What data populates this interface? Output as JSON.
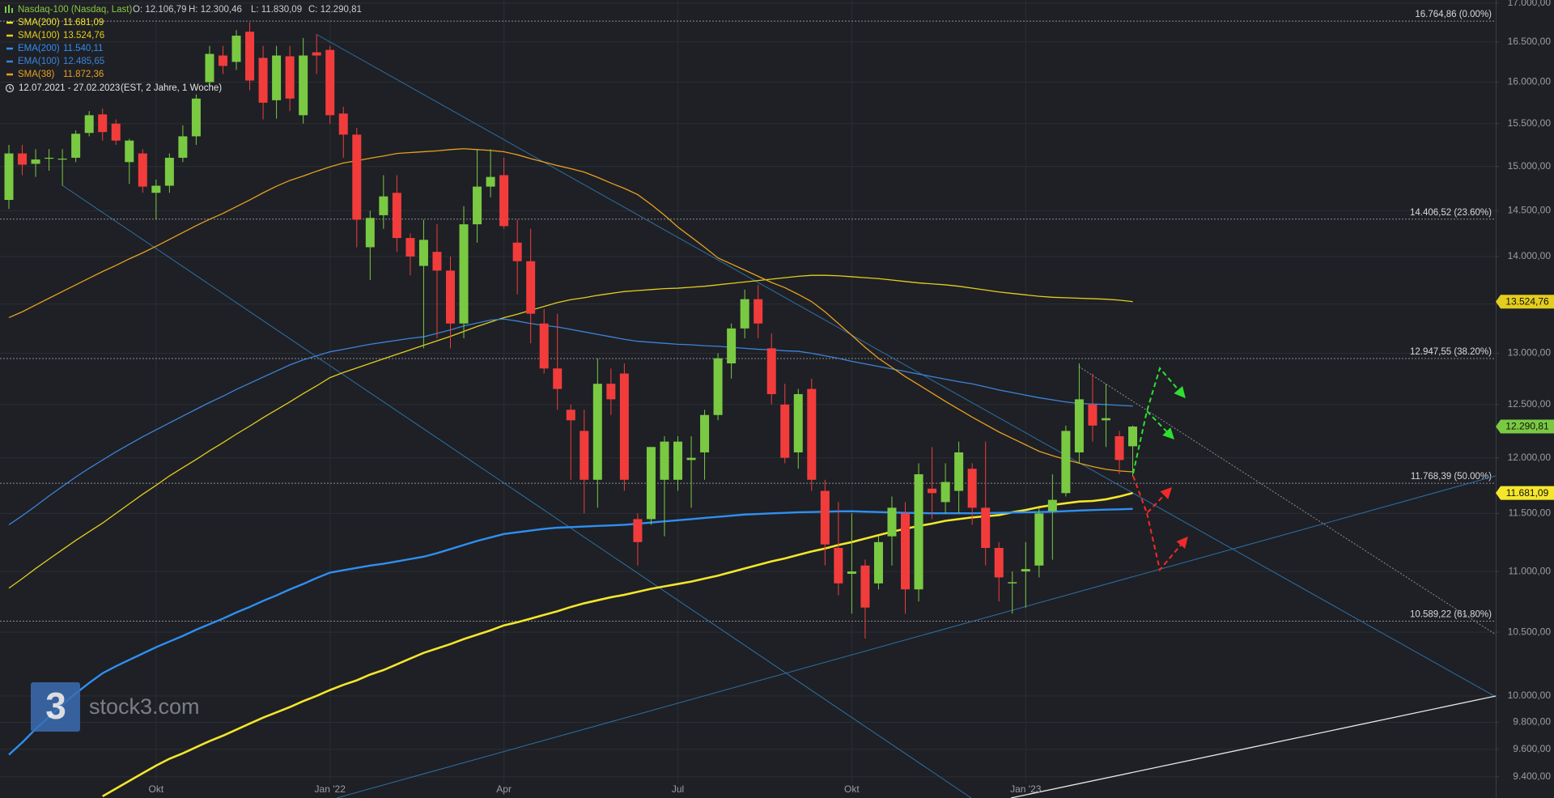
{
  "chart_data": {
    "type": "candlestick",
    "title": "Nasdaq-100 (Nasdaq, Last)",
    "ohlc_labels": [
      "O: 12.106,79",
      "H: 12.300,46",
      "L: 11.830,09",
      "C: 12.290,81"
    ],
    "date_range": "12.07.2021 - 27.02.2023",
    "date_note": "(EST, 2 Jahre, 1 Woche)",
    "brand": "stock3.com",
    "logo_mark": "3",
    "last_close_label": "12.290,81",
    "up_color": "#7ac943",
    "down_color": "#f23c3c",
    "log": true,
    "grid": true,
    "ylim": [
      9248,
      17039
    ],
    "yticks": [
      {
        "value": 9400,
        "label": "9.400,00"
      },
      {
        "value": 9600,
        "label": "9.600,00"
      },
      {
        "value": 9800,
        "label": "9.800,00"
      },
      {
        "value": 10000,
        "label": "10.000,00"
      },
      {
        "value": 10500,
        "label": "10.500,00"
      },
      {
        "value": 11000,
        "label": "11.000,00"
      },
      {
        "value": 11500,
        "label": "11.500,00"
      },
      {
        "value": 12000,
        "label": "12.000,00"
      },
      {
        "value": 12500,
        "label": "12.500,00"
      },
      {
        "value": 13000,
        "label": "13.000,00"
      },
      {
        "value": 13500,
        "label": "13.500,00"
      },
      {
        "value": 14000,
        "label": "14.000,00"
      },
      {
        "value": 14500,
        "label": "14.500,00"
      },
      {
        "value": 15000,
        "label": "15.000,00"
      },
      {
        "value": 15500,
        "label": "15.500,00"
      },
      {
        "value": 16000,
        "label": "16.000,00"
      },
      {
        "value": 16500,
        "label": "16.500,00"
      },
      {
        "value": 17000,
        "label": "17.000,00"
      }
    ],
    "levels": [
      {
        "value": 16764.86,
        "label": "16.764,86 (0.00%)"
      },
      {
        "value": 14406.52,
        "label": "14.406,52 (23.60%)"
      },
      {
        "value": 12947.55,
        "label": "12.947,55 (38.20%)"
      },
      {
        "value": 11768.39,
        "label": "11.768,39 (50.00%)"
      },
      {
        "value": 10589.22,
        "label": "10.589,22 (61.80%)"
      }
    ],
    "categories": [
      null,
      null,
      null,
      null,
      null,
      null,
      null,
      null,
      null,
      null,
      null,
      "Okt",
      null,
      null,
      null,
      null,
      null,
      null,
      null,
      null,
      null,
      null,
      null,
      null,
      "Jan '22",
      null,
      null,
      null,
      null,
      null,
      null,
      null,
      null,
      null,
      null,
      null,
      null,
      "Apr",
      null,
      null,
      null,
      null,
      null,
      null,
      null,
      null,
      null,
      null,
      null,
      null,
      "Jul",
      null,
      null,
      null,
      null,
      null,
      null,
      null,
      null,
      null,
      null,
      null,
      null,
      "Okt",
      null,
      null,
      null,
      null,
      null,
      null,
      null,
      null,
      null,
      null,
      null,
      null,
      "Jan '23",
      null,
      null,
      null,
      null,
      null,
      null,
      null,
      null
    ],
    "open": [
      14620,
      15150,
      15030,
      15090,
      15080,
      15100,
      15390,
      15610,
      15500,
      15050,
      15150,
      14700,
      14780,
      15100,
      15350,
      16000,
      16330,
      16250,
      16630,
      16300,
      15780,
      16320,
      15600,
      16370,
      16400,
      15620,
      15370,
      14100,
      14450,
      14700,
      14200,
      13900,
      14050,
      13850,
      13300,
      14350,
      14770,
      14900,
      14150,
      13950,
      13300,
      12850,
      12450,
      12250,
      11800,
      12700,
      12800,
      11450,
      11450,
      11800,
      11800,
      11980,
      12050,
      12400,
      12900,
      13250,
      13550,
      13050,
      12500,
      12050,
      12650,
      11700,
      11200,
      10980,
      11050,
      10900,
      11300,
      11500,
      10850,
      11720,
      11600,
      11700,
      11900,
      11550,
      11200,
      10900,
      11000,
      11050,
      11520,
      11680,
      12050,
      12500,
      12350,
      12200,
      12106.79
    ],
    "high": [
      15250,
      15250,
      15200,
      15200,
      15200,
      15420,
      15650,
      15680,
      15550,
      15320,
      15200,
      14850,
      15150,
      15480,
      15850,
      16450,
      16450,
      16650,
      16750,
      16450,
      16450,
      16450,
      16550,
      16600,
      16450,
      15700,
      15450,
      14500,
      14900,
      14900,
      14250,
      14400,
      14350,
      14000,
      14550,
      15200,
      15200,
      15100,
      14400,
      14300,
      13450,
      13400,
      12500,
      12450,
      12950,
      12850,
      12900,
      11500,
      12100,
      12200,
      12200,
      12200,
      12450,
      13000,
      13300,
      13650,
      13700,
      13200,
      12700,
      12650,
      12750,
      11800,
      11600,
      11500,
      11100,
      11300,
      11650,
      11600,
      11950,
      12100,
      11950,
      12150,
      11950,
      12150,
      11250,
      11000,
      11250,
      11550,
      11850,
      12300,
      12900,
      12800,
      12700,
      12250,
      12300.46
    ],
    "low": [
      14520,
      14900,
      14880,
      14950,
      14780,
      15050,
      15350,
      15300,
      15250,
      14800,
      14700,
      14400,
      14700,
      15050,
      15250,
      15950,
      16100,
      16150,
      15900,
      15550,
      15560,
      15650,
      15500,
      16100,
      15500,
      15100,
      14100,
      13750,
      14300,
      14050,
      13800,
      13050,
      13150,
      13050,
      13150,
      14150,
      14650,
      14300,
      13600,
      13100,
      12800,
      12450,
      11800,
      11500,
      11550,
      12400,
      11700,
      11050,
      11400,
      11300,
      11700,
      11550,
      11800,
      12350,
      12750,
      13150,
      13150,
      12500,
      11950,
      11900,
      11700,
      11050,
      10800,
      10650,
      10450,
      10850,
      11050,
      10650,
      10750,
      11450,
      11500,
      11500,
      11400,
      11050,
      10750,
      10650,
      10700,
      10950,
      11100,
      11650,
      11950,
      12150,
      12100,
      11850,
      11830.09
    ],
    "close": [
      15150,
      15020,
      15080,
      15100,
      15090,
      15380,
      15600,
      15400,
      15300,
      15300,
      14770,
      14780,
      15100,
      15350,
      15800,
      16350,
      16200,
      16580,
      16020,
      15750,
      16330,
      15800,
      16330,
      16330,
      15600,
      15370,
      14400,
      14420,
      14660,
      14200,
      14000,
      14180,
      13850,
      13300,
      14350,
      14770,
      14880,
      14330,
      13950,
      13400,
      12850,
      12650,
      12350,
      11800,
      12700,
      12550,
      11800,
      11250,
      12100,
      12150,
      12150,
      12000,
      12400,
      12950,
      13250,
      13550,
      13300,
      12600,
      12000,
      12600,
      11800,
      11230,
      10900,
      11000,
      10700,
      11250,
      11550,
      10850,
      11850,
      11680,
      11780,
      12050,
      11550,
      11200,
      10950,
      10910,
      11020,
      11500,
      11620,
      12250,
      12550,
      12300,
      12370,
      11980,
      12290.81
    ],
    "series": [
      {
        "name": "SMA(200)",
        "color": "#f5e62b",
        "legend_value": "11.681,09",
        "badge": true,
        "values": [
          null,
          null,
          null,
          null,
          null,
          null,
          null,
          9260,
          9315,
          9370,
          9425,
          9480,
          9530,
          9570,
          9615,
          9660,
          9700,
          9745,
          9790,
          9835,
          9875,
          9915,
          9960,
          10000,
          10045,
          10085,
          10120,
          10165,
          10200,
          10245,
          10290,
          10335,
          10370,
          10405,
          10445,
          10480,
          10515,
          10555,
          10580,
          10610,
          10640,
          10670,
          10705,
          10735,
          10760,
          10785,
          10805,
          10830,
          10855,
          10875,
          10895,
          10915,
          10940,
          10965,
          10995,
          11025,
          11055,
          11085,
          11110,
          11140,
          11170,
          11195,
          11225,
          11250,
          11280,
          11310,
          11340,
          11365,
          11390,
          11410,
          11435,
          11450,
          11465,
          11475,
          11485,
          11510,
          11530,
          11555,
          11575,
          11590,
          11605,
          11610,
          11625,
          11650,
          11681.09
        ]
      },
      {
        "name": "SMA(100)",
        "color": "#e3cd1e",
        "legend_value": "13.524,76",
        "badge": true,
        "values": [
          10860,
          10940,
          11025,
          11105,
          11185,
          11265,
          11340,
          11415,
          11500,
          11585,
          11670,
          11750,
          11835,
          11910,
          11985,
          12065,
          12140,
          12220,
          12295,
          12375,
          12450,
          12525,
          12605,
          12680,
          12760,
          12810,
          12855,
          12900,
          12945,
          12990,
          13035,
          13080,
          13125,
          13170,
          13220,
          13270,
          13315,
          13360,
          13395,
          13435,
          13475,
          13515,
          13545,
          13565,
          13590,
          13610,
          13630,
          13640,
          13650,
          13660,
          13665,
          13675,
          13685,
          13700,
          13715,
          13730,
          13745,
          13760,
          13775,
          13790,
          13800,
          13800,
          13795,
          13785,
          13775,
          13765,
          13750,
          13735,
          13720,
          13710,
          13700,
          13685,
          13665,
          13645,
          13625,
          13610,
          13595,
          13580,
          13570,
          13565,
          13560,
          13555,
          13550,
          13540,
          13524.76
        ]
      },
      {
        "name": "EMA(200)",
        "color": "#2f8ff2",
        "legend_value": "11.540,11",
        "badge": false,
        "values": [
          9560,
          9650,
          9750,
          9840,
          9935,
          10020,
          10100,
          10175,
          10230,
          10280,
          10330,
          10380,
          10425,
          10470,
          10520,
          10565,
          10610,
          10660,
          10705,
          10755,
          10800,
          10850,
          10895,
          10945,
          10990,
          11010,
          11030,
          11050,
          11065,
          11085,
          11105,
          11125,
          11155,
          11190,
          11225,
          11260,
          11290,
          11320,
          11335,
          11350,
          11365,
          11375,
          11380,
          11385,
          11390,
          11395,
          11400,
          11410,
          11420,
          11430,
          11440,
          11450,
          11460,
          11470,
          11480,
          11490,
          11495,
          11500,
          11505,
          11510,
          11512,
          11515,
          11518,
          11519,
          11515,
          11512,
          11508,
          11505,
          11503,
          11501,
          11501,
          11501,
          11501,
          11503,
          11505,
          11508,
          11510,
          11512,
          11515,
          11520,
          11525,
          11530,
          11533,
          11536,
          11540.11
        ]
      },
      {
        "name": "EMA(100)",
        "color": "#3d83d9",
        "legend_value": "12.485,65",
        "badge": false,
        "values": [
          11400,
          11480,
          11565,
          11655,
          11740,
          11825,
          11905,
          11980,
          12055,
          12125,
          12195,
          12260,
          12325,
          12390,
          12455,
          12520,
          12580,
          12645,
          12705,
          12765,
          12825,
          12885,
          12935,
          12975,
          13015,
          13040,
          13065,
          13090,
          13110,
          13130,
          13150,
          13165,
          13200,
          13235,
          13275,
          13305,
          13335,
          13345,
          13325,
          13300,
          13280,
          13265,
          13240,
          13215,
          13190,
          13165,
          13140,
          13120,
          13110,
          13100,
          13090,
          13085,
          13075,
          13070,
          13060,
          13050,
          13040,
          13035,
          13025,
          13020,
          13000,
          12975,
          12950,
          12920,
          12895,
          12870,
          12845,
          12820,
          12795,
          12770,
          12745,
          12720,
          12700,
          12670,
          12640,
          12615,
          12590,
          12565,
          12545,
          12525,
          12510,
          12505,
          12500,
          12492,
          12485.65
        ]
      },
      {
        "name": "SMA(38)",
        "color": "#e8a01f",
        "legend_value": "11.872,36",
        "badge": false,
        "values": [
          13360,
          13420,
          13490,
          13560,
          13630,
          13700,
          13770,
          13840,
          13905,
          13975,
          14040,
          14110,
          14185,
          14260,
          14335,
          14405,
          14470,
          14545,
          14620,
          14700,
          14775,
          14840,
          14890,
          14945,
          14995,
          15040,
          15065,
          15095,
          15120,
          15150,
          15160,
          15170,
          15180,
          15195,
          15205,
          15195,
          15185,
          15170,
          15135,
          15090,
          15050,
          15010,
          14975,
          14935,
          14875,
          14810,
          14750,
          14680,
          14570,
          14450,
          14320,
          14210,
          14100,
          13985,
          13920,
          13855,
          13790,
          13725,
          13670,
          13600,
          13525,
          13420,
          13300,
          13180,
          13060,
          12950,
          12860,
          12770,
          12690,
          12610,
          12530,
          12455,
          12380,
          12310,
          12240,
          12180,
          12120,
          12060,
          12020,
          11985,
          11950,
          11920,
          11895,
          11880,
          11872.36
        ]
      }
    ]
  }
}
